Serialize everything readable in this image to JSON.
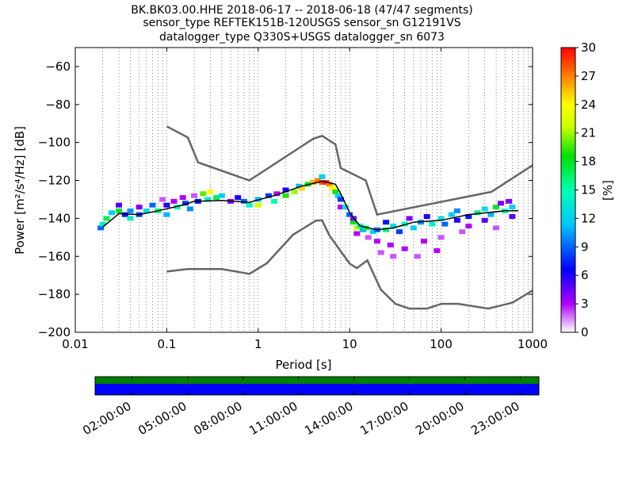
{
  "chart_data": {
    "type": "heatmap",
    "title_lines": [
      "BK.BK03.00.HHE   2018-06-17 -- 2018-06-18  (47/47 segments)",
      "sensor_type REFTEK151B-120USGS sensor_sn G12191VS",
      "datalogger_type Q330S+USGS datalogger_sn 6073"
    ],
    "xlabel": "Period [s]",
    "ylabel": "Power [m²/s⁴/Hz] [dB]",
    "x_scale": "log",
    "xlim": [
      0.01,
      1000
    ],
    "ylim": [
      -200,
      -50
    ],
    "x_ticks": [
      {
        "value": 0.01,
        "label": "0.01"
      },
      {
        "value": 0.1,
        "label": "0.1"
      },
      {
        "value": 1,
        "label": "1"
      },
      {
        "value": 10,
        "label": "10"
      },
      {
        "value": 100,
        "label": "100"
      },
      {
        "value": 1000,
        "label": "1000"
      }
    ],
    "y_ticks": [
      {
        "value": -60,
        "label": "−60"
      },
      {
        "value": -80,
        "label": "−80"
      },
      {
        "value": -100,
        "label": "−100"
      },
      {
        "value": -120,
        "label": "−120"
      },
      {
        "value": -140,
        "label": "−140"
      },
      {
        "value": -160,
        "label": "−160"
      },
      {
        "value": -180,
        "label": "−180"
      },
      {
        "value": -200,
        "label": "−200"
      }
    ],
    "grid": "vertical dotted",
    "colorbar": {
      "label": "[%]",
      "range": [
        0,
        30
      ],
      "colormap": "pqlx",
      "ticks": [
        {
          "value": 0,
          "label": "0"
        },
        {
          "value": 3,
          "label": "3"
        },
        {
          "value": 6,
          "label": "6"
        },
        {
          "value": 9,
          "label": "9"
        },
        {
          "value": 12,
          "label": "12"
        },
        {
          "value": 15,
          "label": "15"
        },
        {
          "value": 18,
          "label": "18"
        },
        {
          "value": 21,
          "label": "21"
        },
        {
          "value": 24,
          "label": "24"
        },
        {
          "value": 27,
          "label": "27"
        },
        {
          "value": 30,
          "label": "30"
        }
      ]
    },
    "noise_models": [
      {
        "name": "high-noise-model",
        "color": "#666666",
        "points": [
          [
            0.1,
            -91.5
          ],
          [
            0.17,
            -97.4
          ],
          [
            0.22,
            -110.5
          ],
          [
            0.8,
            -120
          ],
          [
            4,
            -98
          ],
          [
            5,
            -96.5
          ],
          [
            7,
            -101
          ],
          [
            8,
            -113.5
          ],
          [
            15,
            -120
          ],
          [
            20,
            -138
          ],
          [
            354.8,
            -126
          ],
          [
            1000,
            -112
          ]
        ]
      },
      {
        "name": "low-noise-model",
        "color": "#666666",
        "points": [
          [
            0.1,
            -168
          ],
          [
            0.17,
            -166.7
          ],
          [
            0.4,
            -166.7
          ],
          [
            0.8,
            -169.2
          ],
          [
            1.24,
            -163.7
          ],
          [
            2.4,
            -148.6
          ],
          [
            4.3,
            -141.1
          ],
          [
            5,
            -141.1
          ],
          [
            6,
            -149
          ],
          [
            10,
            -163.8
          ],
          [
            12,
            -166.2
          ],
          [
            15.6,
            -162.1
          ],
          [
            21.9,
            -177.5
          ],
          [
            31.6,
            -185
          ],
          [
            45,
            -187.5
          ],
          [
            70,
            -187.5
          ],
          [
            101,
            -185
          ],
          [
            154,
            -185
          ],
          [
            328,
            -187.5
          ],
          [
            600,
            -184.4
          ],
          [
            1000,
            -178
          ]
        ]
      }
    ],
    "mean_curve": {
      "name": "mean",
      "color": "#000000",
      "points": [
        [
          0.02,
          -144.5
        ],
        [
          0.03,
          -137.5
        ],
        [
          0.05,
          -138
        ],
        [
          0.08,
          -136
        ],
        [
          0.15,
          -133
        ],
        [
          0.2,
          -131
        ],
        [
          0.4,
          -130.5
        ],
        [
          0.8,
          -131.5
        ],
        [
          1.5,
          -128
        ],
        [
          3,
          -123
        ],
        [
          5,
          -120.5
        ],
        [
          7,
          -122
        ],
        [
          8,
          -127
        ],
        [
          10,
          -137
        ],
        [
          13,
          -144
        ],
        [
          20,
          -146
        ],
        [
          30,
          -145
        ],
        [
          50,
          -142
        ],
        [
          100,
          -141
        ],
        [
          200,
          -138
        ],
        [
          500,
          -136
        ],
        [
          700,
          -136
        ]
      ]
    },
    "histogram_cells": [
      {
        "period": 0.019,
        "power": -145,
        "percent": 9
      },
      {
        "period": 0.02,
        "power": -143,
        "percent": 14
      },
      {
        "period": 0.022,
        "power": -140,
        "percent": 17
      },
      {
        "period": 0.025,
        "power": -137,
        "percent": 12
      },
      {
        "period": 0.03,
        "power": -136,
        "percent": 18
      },
      {
        "period": 0.03,
        "power": -133,
        "percent": 5
      },
      {
        "period": 0.035,
        "power": -138,
        "percent": 7
      },
      {
        "period": 0.04,
        "power": -136,
        "percent": 10
      },
      {
        "period": 0.04,
        "power": -140,
        "percent": 14
      },
      {
        "period": 0.05,
        "power": -134,
        "percent": 4
      },
      {
        "period": 0.05,
        "power": -138,
        "percent": 8
      },
      {
        "period": 0.06,
        "power": -136,
        "percent": 13
      },
      {
        "period": 0.07,
        "power": -133,
        "percent": 9
      },
      {
        "period": 0.08,
        "power": -136,
        "percent": 16
      },
      {
        "period": 0.09,
        "power": -130,
        "percent": 2
      },
      {
        "period": 0.1,
        "power": -133,
        "percent": 6
      },
      {
        "period": 0.1,
        "power": -138,
        "percent": 11
      },
      {
        "period": 0.12,
        "power": -131,
        "percent": 3
      },
      {
        "period": 0.13,
        "power": -134,
        "percent": 15
      },
      {
        "period": 0.15,
        "power": -129,
        "percent": 3
      },
      {
        "period": 0.16,
        "power": -132,
        "percent": 8
      },
      {
        "period": 0.18,
        "power": -135,
        "percent": 10
      },
      {
        "period": 0.2,
        "power": -128,
        "percent": 2
      },
      {
        "period": 0.22,
        "power": -131,
        "percent": 7
      },
      {
        "period": 0.25,
        "power": -127,
        "percent": 20
      },
      {
        "period": 0.28,
        "power": -130,
        "percent": 14
      },
      {
        "period": 0.3,
        "power": -126,
        "percent": 24
      },
      {
        "period": 0.35,
        "power": -129,
        "percent": 17
      },
      {
        "period": 0.4,
        "power": -128,
        "percent": 12
      },
      {
        "period": 0.5,
        "power": -131,
        "percent": 4
      },
      {
        "period": 0.6,
        "power": -129,
        "percent": 6
      },
      {
        "period": 0.7,
        "power": -131,
        "percent": 9
      },
      {
        "period": 0.8,
        "power": -133,
        "percent": 14
      },
      {
        "period": 1.0,
        "power": -130,
        "percent": 11
      },
      {
        "period": 1.0,
        "power": -133,
        "percent": 22
      },
      {
        "period": 1.3,
        "power": -128,
        "percent": 8
      },
      {
        "period": 1.5,
        "power": -131,
        "percent": 15
      },
      {
        "period": 1.6,
        "power": -127,
        "percent": 3
      },
      {
        "period": 2.0,
        "power": -128,
        "percent": 19
      },
      {
        "period": 2.0,
        "power": -125,
        "percent": 6
      },
      {
        "period": 2.5,
        "power": -126,
        "percent": 21
      },
      {
        "period": 2.8,
        "power": -123,
        "percent": 11
      },
      {
        "period": 3.0,
        "power": -124,
        "percent": 25
      },
      {
        "period": 3.5,
        "power": -122,
        "percent": 18
      },
      {
        "period": 4.0,
        "power": -121,
        "percent": 26
      },
      {
        "period": 4.5,
        "power": -120,
        "percent": 27
      },
      {
        "period": 5.0,
        "power": -121,
        "percent": 28
      },
      {
        "period": 5.0,
        "power": -118,
        "percent": 12
      },
      {
        "period": 5.5,
        "power": -121,
        "percent": 29
      },
      {
        "period": 6.0,
        "power": -122,
        "percent": 27
      },
      {
        "period": 6.5,
        "power": -124,
        "percent": 24
      },
      {
        "period": 7.0,
        "power": -126,
        "percent": 19
      },
      {
        "period": 7.5,
        "power": -128,
        "percent": 12
      },
      {
        "period": 8.0,
        "power": -130,
        "percent": 8
      },
      {
        "period": 8.0,
        "power": -134,
        "percent": 3
      },
      {
        "period": 9.0,
        "power": -134,
        "percent": 13
      },
      {
        "period": 10.0,
        "power": -138,
        "percent": 9
      },
      {
        "period": 11.0,
        "power": -142,
        "percent": 18
      },
      {
        "period": 11.0,
        "power": -140,
        "percent": 4
      },
      {
        "period": 12.0,
        "power": -145,
        "percent": 22
      },
      {
        "period": 12.0,
        "power": -148,
        "percent": 3
      },
      {
        "period": 13.0,
        "power": -144,
        "percent": 14
      },
      {
        "period": 14.0,
        "power": -146,
        "percent": 11
      },
      {
        "period": 15.0,
        "power": -145,
        "percent": 17
      },
      {
        "period": 16.0,
        "power": -150,
        "percent": 2
      },
      {
        "period": 18.0,
        "power": -147,
        "percent": 13
      },
      {
        "period": 20.0,
        "power": -146,
        "percent": 9
      },
      {
        "period": 20.0,
        "power": -152,
        "percent": 3
      },
      {
        "period": 22.0,
        "power": -158,
        "percent": 2
      },
      {
        "period": 25.0,
        "power": -146,
        "percent": 16
      },
      {
        "period": 25.0,
        "power": -142,
        "percent": 7
      },
      {
        "period": 28.0,
        "power": -154,
        "percent": 3
      },
      {
        "period": 30.0,
        "power": -144,
        "percent": 13
      },
      {
        "period": 30.0,
        "power": -160,
        "percent": 2
      },
      {
        "period": 35.0,
        "power": -147,
        "percent": 8
      },
      {
        "period": 40.0,
        "power": -143,
        "percent": 15
      },
      {
        "period": 40.0,
        "power": -156,
        "percent": 3
      },
      {
        "period": 45.0,
        "power": -140,
        "percent": 4
      },
      {
        "period": 50.0,
        "power": -145,
        "percent": 12
      },
      {
        "period": 55.0,
        "power": -160,
        "percent": 2
      },
      {
        "period": 60.0,
        "power": -142,
        "percent": 10
      },
      {
        "period": 65.0,
        "power": -152,
        "percent": 3
      },
      {
        "period": 70.0,
        "power": -139,
        "percent": 6
      },
      {
        "period": 80.0,
        "power": -143,
        "percent": 14
      },
      {
        "period": 90.0,
        "power": -157,
        "percent": 3
      },
      {
        "period": 100.0,
        "power": -140,
        "percent": 13
      },
      {
        "period": 100.0,
        "power": -150,
        "percent": 2
      },
      {
        "period": 110.0,
        "power": -143,
        "percent": 9
      },
      {
        "period": 130.0,
        "power": -138,
        "percent": 12
      },
      {
        "period": 150.0,
        "power": -136,
        "percent": 10
      },
      {
        "period": 150.0,
        "power": -141,
        "percent": 6
      },
      {
        "period": 170.0,
        "power": -147,
        "percent": 2
      },
      {
        "period": 200.0,
        "power": -139,
        "percent": 7
      },
      {
        "period": 200.0,
        "power": -144,
        "percent": 3
      },
      {
        "period": 250.0,
        "power": -137,
        "percent": 16
      },
      {
        "period": 300.0,
        "power": -135,
        "percent": 13
      },
      {
        "period": 300.0,
        "power": -141,
        "percent": 5
      },
      {
        "period": 350.0,
        "power": -138,
        "percent": 11
      },
      {
        "period": 400.0,
        "power": -134,
        "percent": 18
      },
      {
        "period": 400.0,
        "power": -145,
        "percent": 2
      },
      {
        "period": 450.0,
        "power": -132,
        "percent": 4
      },
      {
        "period": 500.0,
        "power": -136,
        "percent": 15
      },
      {
        "period": 550.0,
        "power": -131,
        "percent": 4
      },
      {
        "period": 600.0,
        "power": -134,
        "percent": 12
      },
      {
        "period": 600.0,
        "power": -139,
        "percent": 5
      }
    ]
  },
  "timeline": {
    "bars": [
      {
        "name": "data-availability-bar",
        "color": "#008000"
      },
      {
        "name": "psd-used-bar",
        "color": "#0000ff"
      }
    ],
    "hours_span": [
      0,
      24
    ],
    "ticks": [
      {
        "hour": 2,
        "label": "02:00:00"
      },
      {
        "hour": 5,
        "label": "05:00:00"
      },
      {
        "hour": 8,
        "label": "08:00:00"
      },
      {
        "hour": 11,
        "label": "11:00:00"
      },
      {
        "hour": 14,
        "label": "14:00:00"
      },
      {
        "hour": 17,
        "label": "17:00:00"
      },
      {
        "hour": 20,
        "label": "20:00:00"
      },
      {
        "hour": 23,
        "label": "23:00:00"
      }
    ]
  }
}
